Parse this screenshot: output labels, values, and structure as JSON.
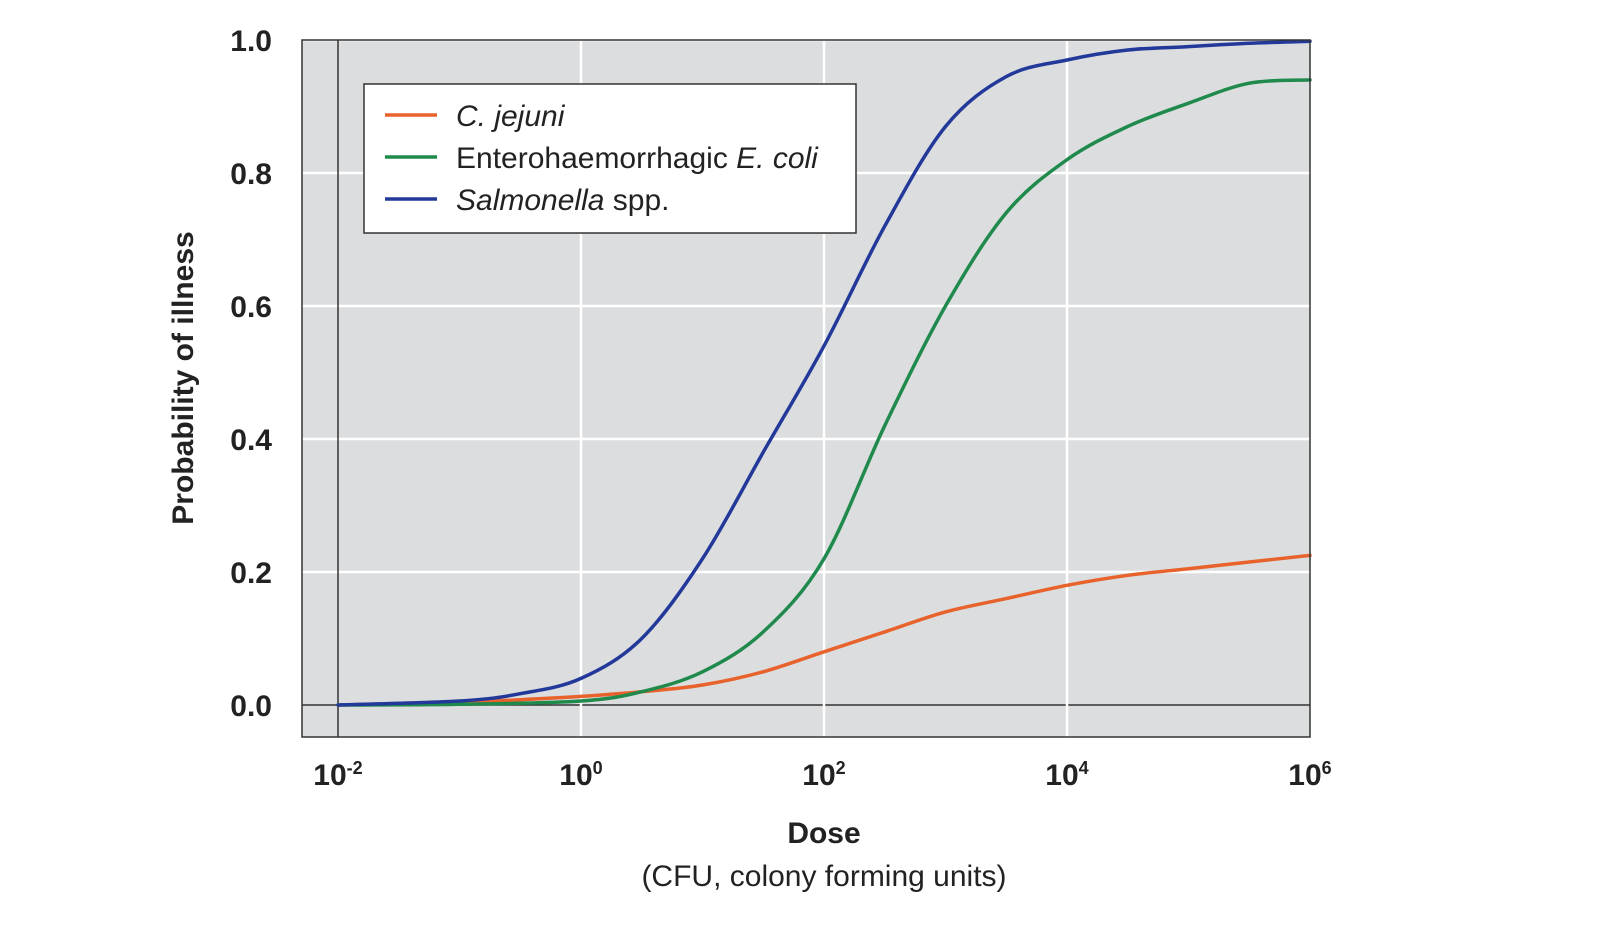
{
  "chart_data": {
    "type": "line",
    "xscale": "log10",
    "xlim": [
      0.01,
      1000000
    ],
    "ylim": [
      0,
      1
    ],
    "grid": true,
    "legend_position": "top-left",
    "ylabel": "Probability of illness",
    "xlabel": "Dose",
    "xlabel_sub": "(CFU, colony forming units)",
    "y_ticks": [
      "0.0",
      "0.2",
      "0.4",
      "0.6",
      "0.8",
      "1.0"
    ],
    "x_ticks": [
      {
        "base": "10",
        "exp": "-2"
      },
      {
        "base": "10",
        "exp": "0"
      },
      {
        "base": "10",
        "exp": "2"
      },
      {
        "base": "10",
        "exp": "4"
      },
      {
        "base": "10",
        "exp": "6"
      }
    ],
    "series": [
      {
        "key": "cjejuni",
        "name_parts": [
          {
            "text": "C. jejuni",
            "italic": true
          }
        ],
        "color": "#e8622c",
        "x": [
          0.01,
          0.1,
          0.316,
          1,
          3.16,
          10,
          31.6,
          100,
          316,
          1000,
          3160,
          10000,
          31600,
          100000,
          316000,
          1000000
        ],
        "y": [
          0.0,
          0.004,
          0.008,
          0.013,
          0.02,
          0.03,
          0.05,
          0.08,
          0.11,
          0.14,
          0.16,
          0.18,
          0.195,
          0.205,
          0.215,
          0.225
        ]
      },
      {
        "key": "ecoli",
        "name_parts": [
          {
            "text": "Enterohaemorrhagic ",
            "italic": false
          },
          {
            "text": "E. coli",
            "italic": true
          }
        ],
        "color": "#1f8a4c",
        "x": [
          0.01,
          0.1,
          1,
          3.16,
          10,
          31.6,
          100,
          316,
          1000,
          3160,
          10000,
          31600,
          100000,
          316000,
          1000000
        ],
        "y": [
          0.0,
          0.001,
          0.006,
          0.02,
          0.05,
          0.11,
          0.22,
          0.42,
          0.6,
          0.74,
          0.82,
          0.87,
          0.905,
          0.935,
          0.94
        ]
      },
      {
        "key": "salmonella",
        "name_parts": [
          {
            "text": "Salmonella",
            "italic": true
          },
          {
            "text": " spp.",
            "italic": false
          }
        ],
        "color": "#23399a",
        "x": [
          0.01,
          0.1,
          0.316,
          1,
          3.16,
          10,
          31.6,
          100,
          316,
          1000,
          3160,
          10000,
          31600,
          100000,
          316000,
          1000000
        ],
        "y": [
          0.0,
          0.006,
          0.017,
          0.04,
          0.1,
          0.22,
          0.38,
          0.54,
          0.72,
          0.87,
          0.945,
          0.97,
          0.985,
          0.99,
          0.995,
          0.998
        ]
      }
    ]
  }
}
